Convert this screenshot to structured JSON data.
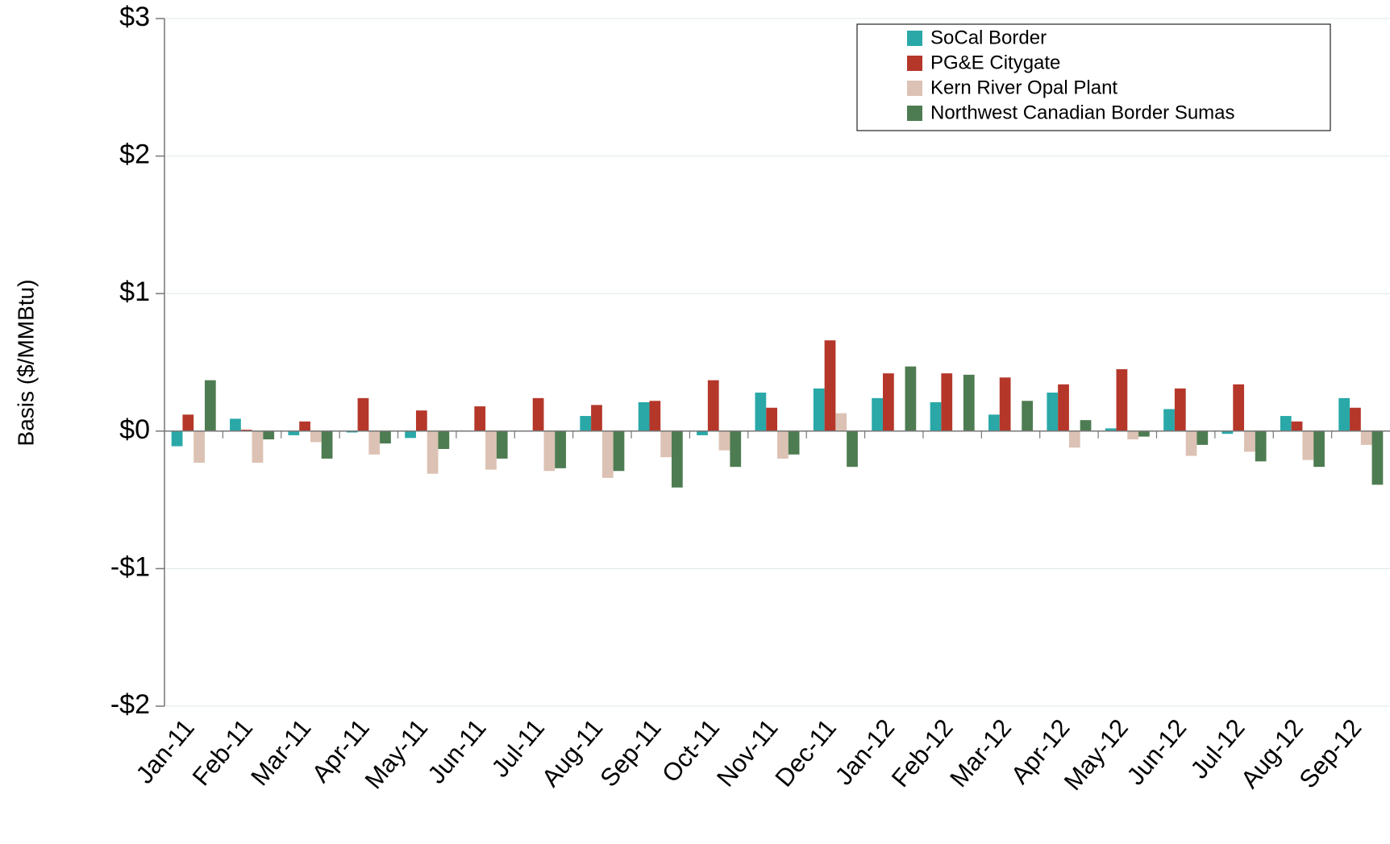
{
  "chart_data": {
    "type": "bar",
    "y_label": "Basis ($/MMBtu)",
    "categories": [
      "Jan-11",
      "Feb-11",
      "Mar-11",
      "Apr-11",
      "May-11",
      "Jun-11",
      "Jul-11",
      "Aug-11",
      "Sep-11",
      "Oct-11",
      "Nov-11",
      "Dec-11",
      "Jan-12",
      "Feb-12",
      "Mar-12",
      "Apr-12",
      "May-12",
      "Jun-12",
      "Jul-12",
      "Aug-12",
      "Sep-12"
    ],
    "series": [
      {
        "name": "SoCal Border",
        "color": "#2aa8a8",
        "values": [
          -0.11,
          0.09,
          -0.03,
          -0.01,
          -0.05,
          0,
          0,
          0.11,
          0.21,
          -0.03,
          0.28,
          0.31,
          0.24,
          0.21,
          0.12,
          0.28,
          0.02,
          0.16,
          -0.02,
          0.11,
          0.24
        ]
      },
      {
        "name": "PG&E Citygate",
        "color": "#b5372a",
        "values": [
          0.12,
          0.01,
          0.07,
          0.24,
          0.15,
          0.18,
          0.24,
          0.19,
          0.22,
          0.37,
          0.17,
          0.66,
          0.42,
          0.42,
          0.39,
          0.34,
          0.45,
          0.31,
          0.34,
          0.07,
          0.17
        ]
      },
      {
        "name": "Kern River Opal Plant",
        "color": "#dcc2b4",
        "values": [
          -0.23,
          -0.23,
          -0.08,
          -0.17,
          -0.31,
          -0.28,
          -0.29,
          -0.34,
          -0.19,
          -0.14,
          -0.2,
          0.13,
          0,
          0,
          0,
          -0.12,
          -0.06,
          -0.18,
          -0.15,
          -0.21,
          -0.1
        ]
      },
      {
        "name": "Northwest Canadian Border Sumas",
        "color": "#4e7c52",
        "values": [
          0.37,
          -0.06,
          -0.2,
          -0.09,
          -0.13,
          -0.2,
          -0.27,
          -0.29,
          -0.41,
          -0.26,
          -0.17,
          -0.26,
          0.47,
          0.41,
          0.22,
          0.08,
          -0.04,
          -0.1,
          -0.22,
          -0.26,
          -0.39
        ]
      }
    ],
    "ylim": [
      -2,
      3
    ],
    "yticks": [
      {
        "value": -2,
        "label": "-$2"
      },
      {
        "value": -1,
        "label": "-$1"
      },
      {
        "value": 0,
        "label": "$0"
      },
      {
        "value": 1,
        "label": "$1"
      },
      {
        "value": 2,
        "label": "$2"
      },
      {
        "value": 3,
        "label": "$3"
      }
    ],
    "grid": true,
    "legend": "upper right"
  }
}
